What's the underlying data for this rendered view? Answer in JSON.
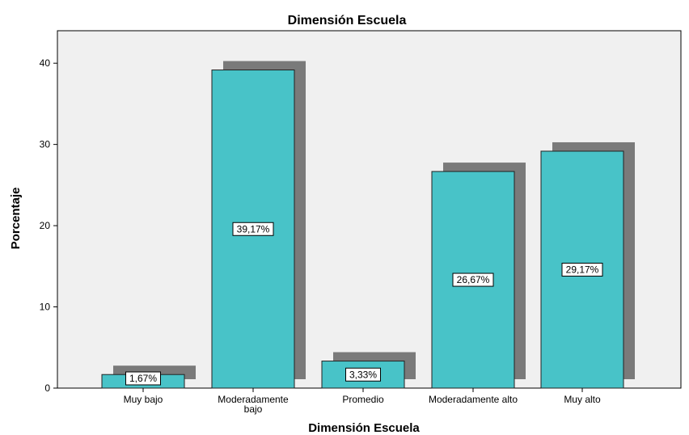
{
  "chart_data": {
    "type": "bar",
    "title": "Dimensión Escuela",
    "xlabel": "Dimensión Escuela",
    "ylabel": "Porcentaje",
    "categories": [
      "Muy bajo",
      "Moderadamente bajo",
      "Promedio",
      "Moderadamente alto",
      "Muy alto"
    ],
    "category_lines": [
      [
        "Muy bajo"
      ],
      [
        "Moderadamente",
        "bajo"
      ],
      [
        "Promedio"
      ],
      [
        "Moderadamente alto"
      ],
      [
        "Muy alto"
      ]
    ],
    "values": [
      1.67,
      39.17,
      3.33,
      26.67,
      29.17
    ],
    "data_labels": [
      "1,67%",
      "39,17%",
      "3,33%",
      "26,67%",
      "29,17%"
    ],
    "yticks": [
      0,
      10,
      20,
      30,
      40
    ],
    "ylim": [
      0,
      44
    ],
    "grid": false,
    "legend": "none",
    "colors": {
      "bar": "#48c3c8",
      "shadow": "#7a7a7a",
      "plot_background": "#f0f0f0",
      "label_box": "#ffffff"
    }
  }
}
